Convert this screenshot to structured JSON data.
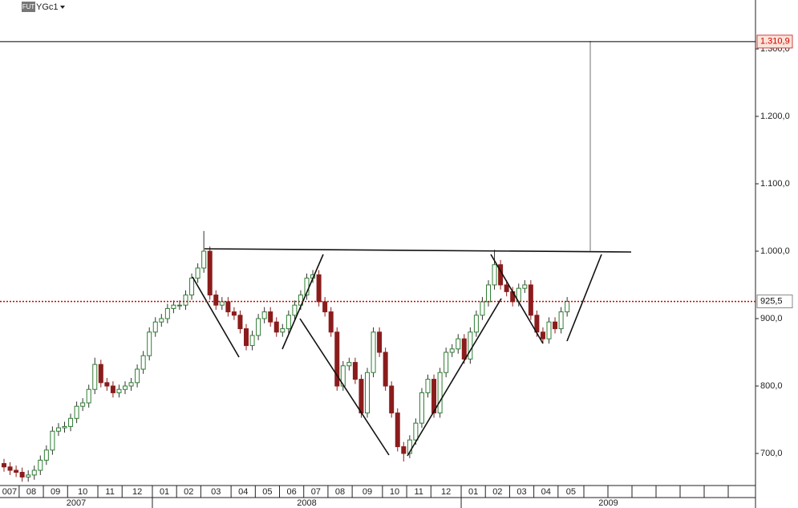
{
  "chart_data": {
    "type": "candlestick",
    "symbol_badge": "FUT",
    "title": "YGc1",
    "categories": [
      "007",
      null,
      null,
      "08",
      null,
      null,
      null,
      "09",
      null,
      null,
      null,
      "10",
      null,
      null,
      null,
      null,
      "11",
      null,
      null,
      null,
      "12",
      null,
      null,
      null,
      null,
      "01",
      null,
      null,
      null,
      "02",
      null,
      null,
      null,
      "03",
      null,
      null,
      null,
      null,
      "04",
      null,
      null,
      null,
      "05",
      null,
      null,
      null,
      "06",
      null,
      null,
      null,
      "07",
      null,
      null,
      null,
      "08",
      null,
      null,
      null,
      "09",
      null,
      null,
      null,
      null,
      "10",
      null,
      null,
      null,
      "11",
      null,
      null,
      null,
      "12",
      null,
      null,
      null,
      null,
      "01",
      null,
      null,
      null,
      "02",
      null,
      null,
      null,
      "03",
      null,
      null,
      null,
      "04",
      null,
      null,
      null,
      "05",
      null
    ],
    "year_labels": [
      "2007",
      "2008",
      "2009"
    ],
    "open": [
      685,
      680,
      675,
      672,
      665,
      668,
      675,
      690,
      705,
      733,
      738,
      740,
      752,
      770,
      775,
      795,
      832,
      805,
      800,
      790,
      795,
      800,
      805,
      825,
      845,
      880,
      895,
      900,
      915,
      920,
      920,
      935,
      960,
      975,
      1000,
      935,
      920,
      925,
      910,
      905,
      885,
      860,
      875,
      900,
      910,
      895,
      880,
      885,
      905,
      920,
      935,
      960,
      965,
      925,
      910,
      880,
      800,
      830,
      835,
      810,
      760,
      820,
      880,
      850,
      800,
      760,
      710,
      700,
      720,
      745,
      790,
      810,
      760,
      820,
      850,
      855,
      870,
      840,
      880,
      905,
      925,
      950,
      980,
      950,
      940,
      925,
      945,
      950,
      905,
      880,
      870,
      895,
      885,
      910
    ],
    "high": [
      692,
      687,
      682,
      679,
      675,
      682,
      697,
      712,
      740,
      745,
      747,
      759,
      777,
      782,
      802,
      842,
      839,
      812,
      807,
      802,
      807,
      812,
      832,
      852,
      887,
      902,
      907,
      922,
      927,
      927,
      942,
      967,
      982,
      1030,
      1007,
      942,
      932,
      932,
      917,
      912,
      892,
      882,
      907,
      917,
      917,
      902,
      892,
      912,
      927,
      942,
      967,
      972,
      972,
      932,
      917,
      887,
      837,
      842,
      842,
      817,
      827,
      887,
      887,
      857,
      807,
      767,
      717,
      727,
      752,
      797,
      817,
      817,
      827,
      857,
      862,
      877,
      877,
      887,
      912,
      932,
      957,
      1002,
      987,
      957,
      947,
      952,
      957,
      957,
      912,
      887,
      902,
      902,
      917,
      932
    ],
    "low": [
      673,
      668,
      665,
      658,
      658,
      661,
      668,
      683,
      698,
      726,
      731,
      733,
      745,
      763,
      768,
      788,
      798,
      793,
      783,
      783,
      788,
      793,
      798,
      818,
      838,
      873,
      888,
      893,
      908,
      913,
      913,
      928,
      953,
      968,
      928,
      913,
      913,
      903,
      898,
      878,
      853,
      853,
      868,
      893,
      888,
      873,
      873,
      878,
      898,
      913,
      928,
      953,
      918,
      903,
      873,
      793,
      793,
      823,
      803,
      753,
      753,
      813,
      843,
      793,
      753,
      703,
      688,
      693,
      713,
      738,
      783,
      753,
      753,
      813,
      843,
      848,
      833,
      833,
      873,
      898,
      918,
      943,
      943,
      933,
      918,
      918,
      938,
      898,
      873,
      863,
      863,
      878,
      878,
      903
    ],
    "close": [
      680,
      675,
      672,
      665,
      668,
      675,
      690,
      705,
      733,
      738,
      740,
      752,
      770,
      775,
      795,
      832,
      805,
      800,
      790,
      795,
      800,
      805,
      825,
      845,
      880,
      895,
      900,
      915,
      920,
      920,
      935,
      960,
      975,
      1000,
      935,
      920,
      925,
      910,
      905,
      885,
      860,
      875,
      900,
      910,
      895,
      880,
      885,
      905,
      920,
      935,
      960,
      965,
      925,
      910,
      880,
      800,
      830,
      835,
      810,
      760,
      820,
      880,
      850,
      800,
      760,
      710,
      700,
      720,
      745,
      790,
      810,
      760,
      820,
      850,
      855,
      870,
      840,
      880,
      905,
      925,
      950,
      980,
      950,
      940,
      925,
      945,
      950,
      905,
      880,
      870,
      895,
      885,
      910,
      925.5
    ],
    "up_color": "#2e7d32",
    "down_color": "#8b1c1c",
    "ylim": [
      652.4,
      1372.6
    ],
    "yticks": [
      {
        "value": 700,
        "label": "700,0"
      },
      {
        "value": 800,
        "label": "800,0"
      },
      {
        "value": 900,
        "label": "900,0"
      },
      {
        "value": 1000,
        "label": "1.000,0"
      },
      {
        "value": 1100,
        "label": "1.100,0"
      },
      {
        "value": 1200,
        "label": "1.200,0"
      },
      {
        "value": 1300,
        "label": "1.300,0"
      }
    ],
    "hlines": [
      {
        "value": 1310.9,
        "label": "1.310,9",
        "color": "#000000",
        "dash": false
      },
      {
        "value": 925.5,
        "label": "925,5",
        "color": "#cc0000",
        "dash": true
      }
    ]
  }
}
